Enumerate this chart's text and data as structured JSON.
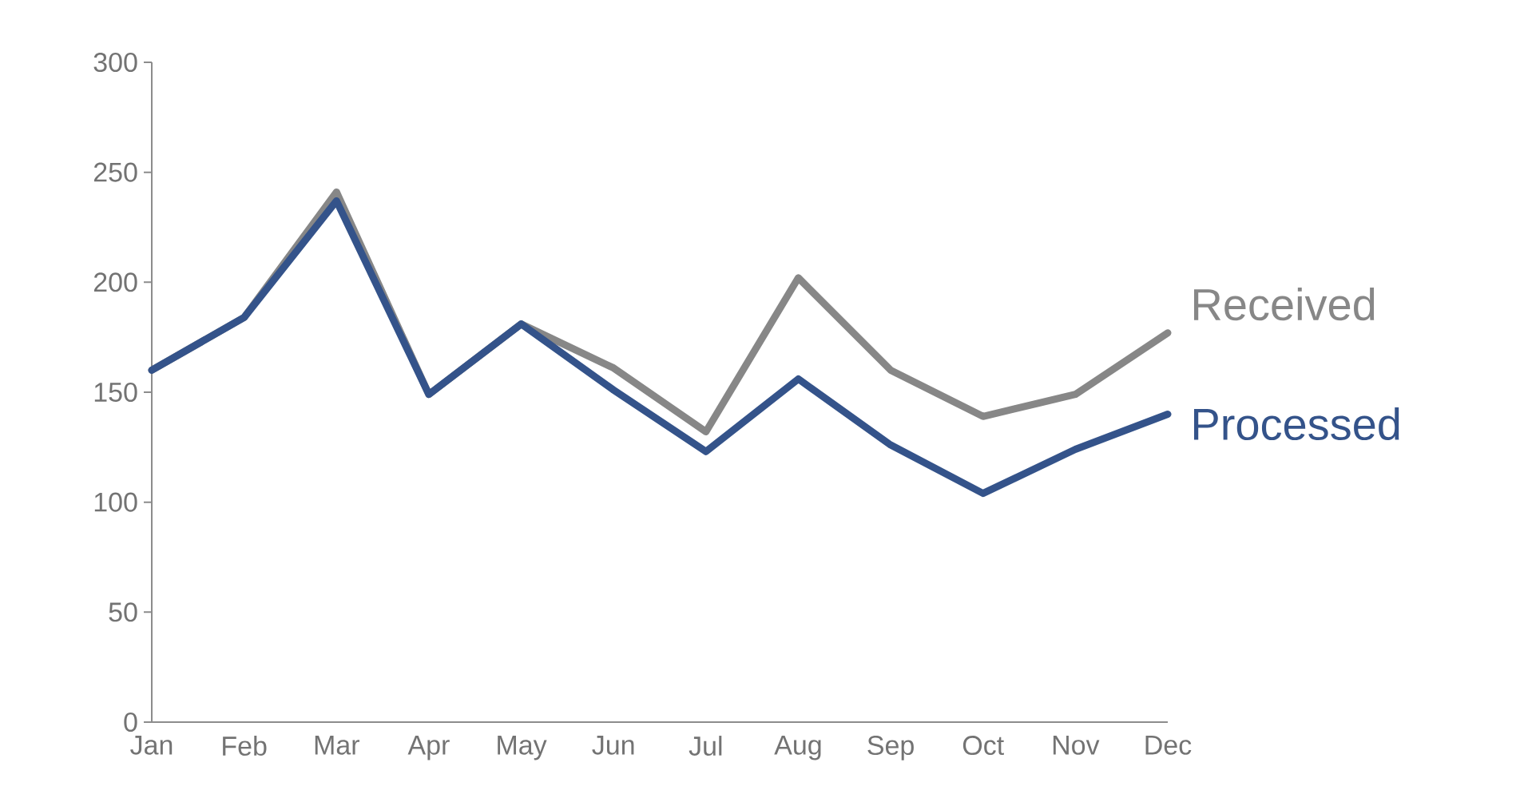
{
  "chart_data": {
    "type": "line",
    "categories": [
      "Jan",
      "Feb",
      "Mar",
      "Apr",
      "May",
      "Jun",
      "Jul",
      "Aug",
      "Sep",
      "Oct",
      "Nov",
      "Dec"
    ],
    "series": [
      {
        "name": "Received",
        "color": "#878787",
        "values": [
          160,
          184,
          241,
          149,
          181,
          161,
          132,
          202,
          160,
          139,
          149,
          177
        ]
      },
      {
        "name": "Processed",
        "color": "#34538a",
        "values": [
          160,
          184,
          237,
          149,
          181,
          151,
          123,
          156,
          126,
          104,
          124,
          140
        ]
      }
    ],
    "ylim": [
      0,
      300
    ],
    "yticks": [
      0,
      50,
      100,
      150,
      200,
      250,
      300
    ],
    "grid": false,
    "marker": "none",
    "line_style": "solid"
  }
}
